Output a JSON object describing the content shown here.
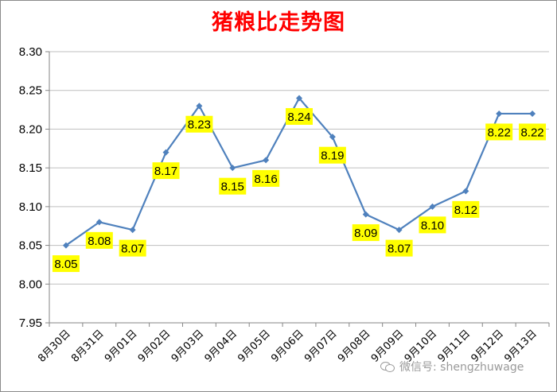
{
  "chart_data": {
    "type": "line",
    "title": "猪粮比走势图",
    "xlabel": "",
    "ylabel": "",
    "categories": [
      "8月30日",
      "8月31日",
      "9月01日",
      "9月02日",
      "9月03日",
      "9月04日",
      "9月05日",
      "9月06日",
      "9月07日",
      "9月08日",
      "9月09日",
      "9月10日",
      "9月11日",
      "9月12日",
      "9月13日"
    ],
    "values": [
      8.05,
      8.08,
      8.07,
      8.17,
      8.23,
      8.15,
      8.16,
      8.24,
      8.19,
      8.09,
      8.07,
      8.1,
      8.12,
      8.22,
      8.22
    ],
    "data_labels": [
      "8.05",
      "8.08",
      "8.07",
      "8.17",
      "8.23",
      "8.15",
      "8.16",
      "8.24",
      "8.19",
      "8.09",
      "8.07",
      "8.10",
      "8.12",
      "8.22",
      "8.22"
    ],
    "yticks": [
      "7.95",
      "8.00",
      "8.05",
      "8.10",
      "8.15",
      "8.20",
      "8.25",
      "8.30"
    ],
    "ylim": [
      7.95,
      8.3
    ],
    "grid": "horizontal",
    "legend": "none",
    "colors": {
      "line": "#4f81bd",
      "label_bg": "#ffff00",
      "title": "#ff0000",
      "grid": "#bfbfbf"
    }
  },
  "watermark": {
    "icon": "wechat-icon",
    "text": "微信号: shengzhuwage"
  }
}
